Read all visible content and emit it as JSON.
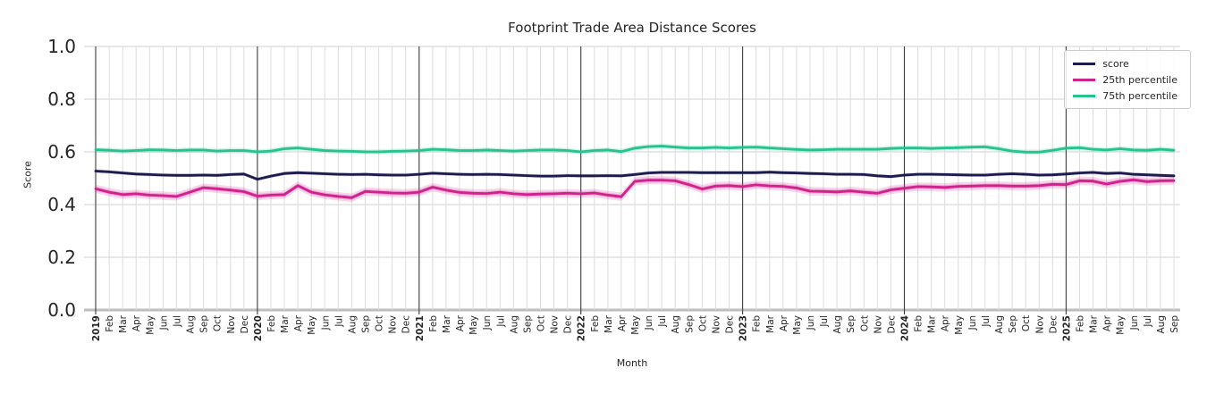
{
  "chart_data": {
    "type": "line",
    "title": "Footprint Trade Area Distance Scores",
    "xlabel": "Month",
    "ylabel": "Score",
    "ylim": [
      0.0,
      1.0
    ],
    "yticks": [
      0.0,
      0.2,
      0.4,
      0.6,
      0.8,
      1.0
    ],
    "grid": true,
    "legend_position": "upper right",
    "x": [
      "2019",
      "Feb",
      "Mar",
      "Apr",
      "May",
      "Jun",
      "Jul",
      "Aug",
      "Sep",
      "Oct",
      "Nov",
      "Dec",
      "2020",
      "Feb",
      "Mar",
      "Apr",
      "May",
      "Jun",
      "Jul",
      "Aug",
      "Sep",
      "Oct",
      "Nov",
      "Dec",
      "2021",
      "Feb",
      "Mar",
      "Apr",
      "May",
      "Jun",
      "Jul",
      "Aug",
      "Sep",
      "Oct",
      "Nov",
      "Dec",
      "2022",
      "Feb",
      "Mar",
      "Apr",
      "May",
      "Jun",
      "Jul",
      "Aug",
      "Sep",
      "Oct",
      "Nov",
      "Dec",
      "2023",
      "Feb",
      "Mar",
      "Apr",
      "May",
      "Jun",
      "Jul",
      "Aug",
      "Sep",
      "Oct",
      "Nov",
      "Dec",
      "2024",
      "Feb",
      "Mar",
      "Apr",
      "May",
      "Jun",
      "Jul",
      "Aug",
      "Sep",
      "Oct",
      "Nov",
      "Dec",
      "2025",
      "Feb",
      "Mar",
      "Apr",
      "May",
      "Jun",
      "Jul",
      "Aug",
      "Sep"
    ],
    "series": [
      {
        "name": "score",
        "color": "#1c1b4e",
        "band": 0.007,
        "values": [
          0.527,
          0.524,
          0.52,
          0.516,
          0.514,
          0.512,
          0.511,
          0.511,
          0.512,
          0.511,
          0.514,
          0.516,
          0.496,
          0.508,
          0.518,
          0.521,
          0.519,
          0.517,
          0.515,
          0.514,
          0.515,
          0.513,
          0.512,
          0.512,
          0.515,
          0.519,
          0.517,
          0.515,
          0.514,
          0.515,
          0.514,
          0.512,
          0.51,
          0.508,
          0.508,
          0.51,
          0.509,
          0.509,
          0.51,
          0.509,
          0.514,
          0.52,
          0.522,
          0.522,
          0.522,
          0.521,
          0.521,
          0.521,
          0.521,
          0.521,
          0.523,
          0.521,
          0.52,
          0.518,
          0.517,
          0.515,
          0.515,
          0.514,
          0.509,
          0.506,
          0.512,
          0.515,
          0.515,
          0.514,
          0.513,
          0.512,
          0.512,
          0.515,
          0.517,
          0.515,
          0.512,
          0.513,
          0.516,
          0.52,
          0.522,
          0.518,
          0.52,
          0.515,
          0.513,
          0.511,
          0.509
        ]
      },
      {
        "name": "25th percentile",
        "color": "#d0218f",
        "band": 0.016,
        "values": [
          0.46,
          0.447,
          0.438,
          0.441,
          0.436,
          0.434,
          0.431,
          0.447,
          0.464,
          0.46,
          0.455,
          0.449,
          0.432,
          0.436,
          0.438,
          0.472,
          0.447,
          0.437,
          0.431,
          0.426,
          0.45,
          0.447,
          0.444,
          0.443,
          0.447,
          0.466,
          0.455,
          0.446,
          0.443,
          0.442,
          0.447,
          0.441,
          0.438,
          0.44,
          0.441,
          0.443,
          0.441,
          0.444,
          0.436,
          0.43,
          0.488,
          0.493,
          0.493,
          0.49,
          0.476,
          0.459,
          0.47,
          0.472,
          0.468,
          0.475,
          0.471,
          0.469,
          0.463,
          0.451,
          0.45,
          0.448,
          0.452,
          0.447,
          0.443,
          0.456,
          0.462,
          0.468,
          0.467,
          0.465,
          0.469,
          0.47,
          0.472,
          0.472,
          0.47,
          0.47,
          0.472,
          0.477,
          0.476,
          0.49,
          0.489,
          0.478,
          0.488,
          0.494,
          0.487,
          0.49,
          0.491
        ]
      },
      {
        "name": "75th percentile",
        "color": "#26c38f",
        "band": 0.01,
        "values": [
          0.608,
          0.606,
          0.603,
          0.605,
          0.608,
          0.607,
          0.605,
          0.607,
          0.607,
          0.603,
          0.605,
          0.605,
          0.6,
          0.603,
          0.612,
          0.615,
          0.61,
          0.605,
          0.603,
          0.602,
          0.6,
          0.6,
          0.602,
          0.603,
          0.605,
          0.61,
          0.608,
          0.605,
          0.605,
          0.607,
          0.605,
          0.603,
          0.605,
          0.607,
          0.607,
          0.605,
          0.6,
          0.605,
          0.607,
          0.601,
          0.614,
          0.62,
          0.622,
          0.618,
          0.615,
          0.615,
          0.617,
          0.615,
          0.617,
          0.618,
          0.615,
          0.612,
          0.609,
          0.607,
          0.608,
          0.61,
          0.61,
          0.61,
          0.61,
          0.613,
          0.615,
          0.615,
          0.613,
          0.615,
          0.616,
          0.618,
          0.619,
          0.612,
          0.603,
          0.599,
          0.599,
          0.606,
          0.614,
          0.616,
          0.61,
          0.607,
          0.612,
          0.607,
          0.606,
          0.61,
          0.606
        ]
      }
    ]
  }
}
